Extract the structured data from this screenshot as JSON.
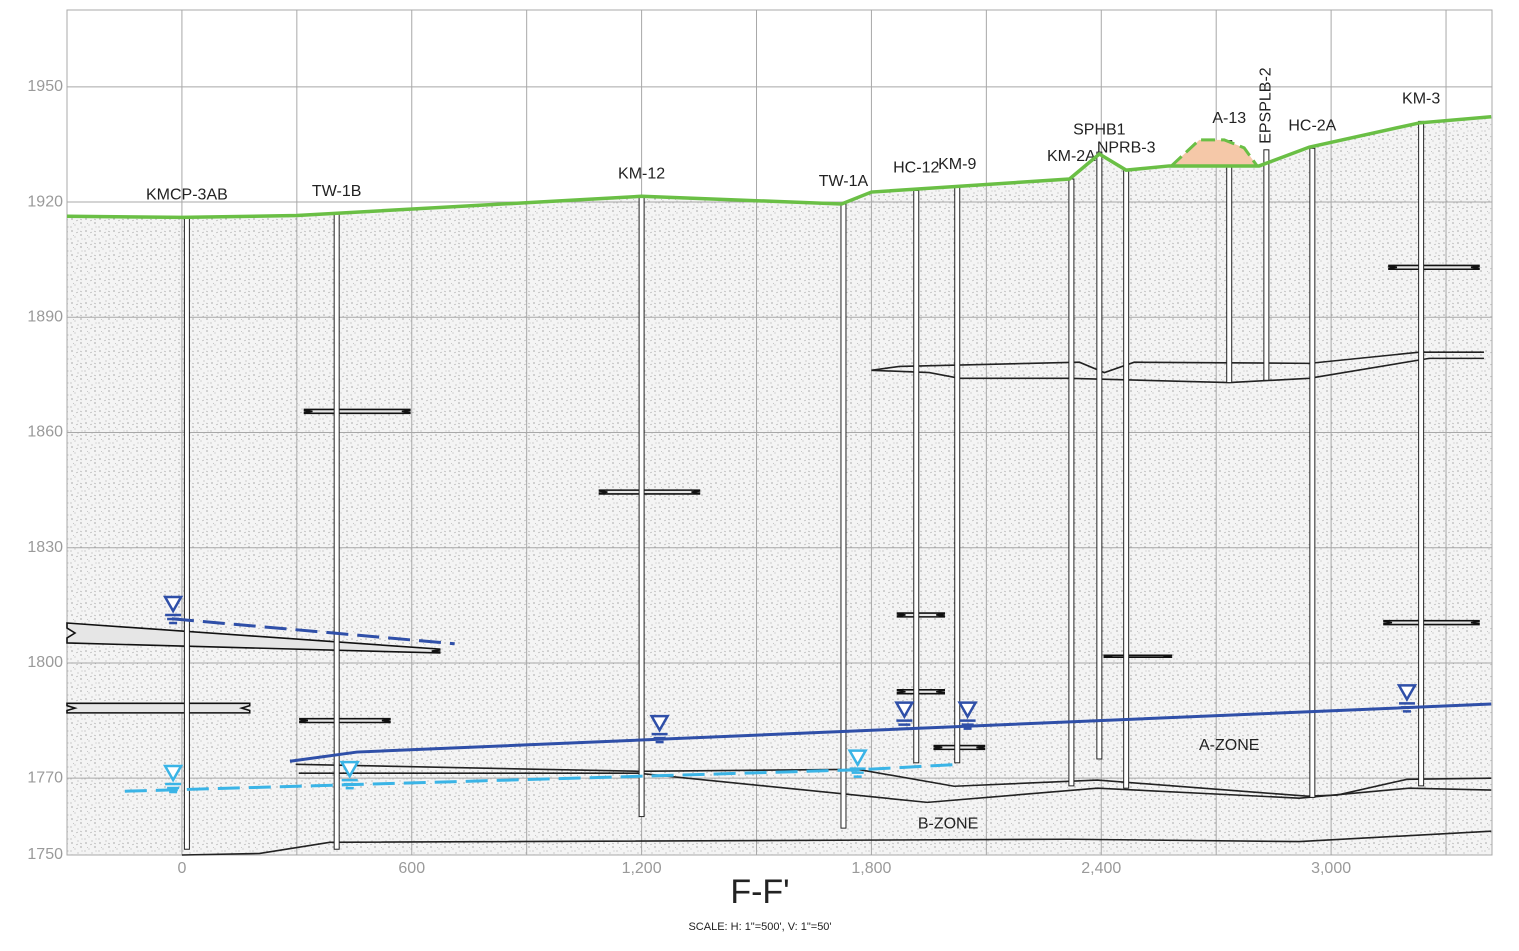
{
  "chart_data": {
    "type": "cross-section",
    "title": "F-F'",
    "subtitle": "SCALE: H: 1\"=500', V: 1\"=50'",
    "xlim": [
      -300,
      3420
    ],
    "ylim": [
      1750,
      1970
    ],
    "xticks": [
      0,
      600,
      {
        "value": 1200,
        "label": "1,200"
      },
      {
        "value": 1800,
        "label": "1,800"
      },
      {
        "value": 2400,
        "label": "2,400"
      },
      {
        "value": 3000,
        "label": "3,000"
      }
    ],
    "xgrid": [
      0,
      300,
      600,
      900,
      1200,
      1500,
      1800,
      2100,
      2400,
      2700,
      3000,
      3300
    ],
    "yticks": [
      1750,
      1770,
      1800,
      1830,
      1860,
      1890,
      1920,
      1950
    ],
    "grid": true,
    "ground": {
      "color": "#6abf45",
      "x": [
        -300,
        0,
        300,
        1200,
        1722,
        1800,
        2317,
        2395,
        2465,
        2577,
        2812,
        2943,
        3230,
        3418
      ],
      "y": [
        1916.3,
        1916,
        1916.5,
        1921.5,
        1919.5,
        1922.6,
        1926,
        1932.5,
        1928.3,
        1929.4,
        1929.4,
        1934.3,
        1940.6,
        1942.2
      ]
    },
    "mound": {
      "color": "#f5c8a8",
      "x": [
        2583,
        2656,
        2721,
        2773,
        2807
      ],
      "y": [
        1929.4,
        1936.2,
        1936.2,
        1934.1,
        1929.4
      ]
    },
    "boreholes": [
      {
        "name": "KMCP-3AB",
        "x": 13,
        "top": 1916,
        "bottom": 1751.5
      },
      {
        "name": "TW-1B",
        "x": 404,
        "top": 1916.9,
        "bottom": 1751.5
      },
      {
        "name": "KM-12",
        "x": 1200,
        "top": 1921.5,
        "bottom": 1760
      },
      {
        "name": "TW-1A",
        "x": 1727,
        "top": 1919.5,
        "bottom": 1757
      },
      {
        "name": "HC-12",
        "x": 1917,
        "top": 1923,
        "bottom": 1774
      },
      {
        "name": "KM-9",
        "x": 2024,
        "top": 1924,
        "bottom": 1774
      },
      {
        "name": "KM-2A",
        "x": 2322,
        "top": 1926,
        "bottom": 1768
      },
      {
        "name": "SPHB1",
        "x": 2395,
        "top": 1933,
        "bottom": 1775
      },
      {
        "name": "NPRB-3",
        "x": 2465,
        "top": 1928.3,
        "bottom": 1767.4
      },
      {
        "name": "A-13",
        "x": 2734,
        "top": 1936,
        "bottom": 1873
      },
      {
        "name": "EPSPLB-2",
        "x": 2831,
        "top": 1933.6,
        "bottom": 1873.6,
        "label_rotated": true
      },
      {
        "name": "HC-2A",
        "x": 2951,
        "top": 1934,
        "bottom": 1765
      },
      {
        "name": "KM-3",
        "x": 3235,
        "top": 1941,
        "bottom": 1768
      }
    ],
    "strata": [
      {
        "x": [
          297,
          1190,
          1764,
          2016,
          2390,
          2938,
          3016,
          3198,
          3418
        ],
        "y": [
          1773.6,
          1771.8,
          1772.3,
          1767.9,
          1769.5,
          1765.3,
          1765.6,
          1769.7,
          1770
        ]
      },
      {
        "x": [
          305,
          1190,
          1946,
          2390,
          2917,
          3204,
          3418
        ],
        "y": [
          1771.3,
          1771.3,
          1763.7,
          1767.4,
          1764.8,
          1767.4,
          1766.9
        ]
      },
      {
        "x": [
          0,
          203,
          386,
          2317,
          2917,
          3418
        ],
        "y": [
          1750,
          1750.4,
          1753.3,
          1754.1,
          1753.5,
          1756.2
        ]
      },
      {
        "x": [
          1800,
          1873,
          2343,
          2408,
          2486,
          2943,
          3230,
          3399
        ],
        "y": [
          1876.2,
          1877.2,
          1878.3,
          1875.6,
          1878.3,
          1878,
          1880.9,
          1880.9
        ]
      },
      {
        "x": [
          1800,
          1951,
          2030,
          2317,
          2734,
          2943,
          3256,
          3399
        ],
        "y": [
          1876.2,
          1875.6,
          1874.1,
          1874.1,
          1873,
          1874.1,
          1879.3,
          1879.3
        ]
      }
    ],
    "lenses": [
      {
        "x": [
          -300,
          673
        ],
        "top": [
          1810.4,
          1803.6
        ],
        "bottom": [
          1805.2,
          1802.6
        ]
      },
      {
        "x": [
          -300,
          177
        ],
        "top": [
          1789.5,
          1789.5
        ],
        "bottom": [
          1787,
          1787
        ]
      },
      {
        "x": [
          320,
          595
        ],
        "top": [
          1866,
          1866
        ],
        "bottom": [
          1865,
          1865
        ]
      },
      {
        "x": [
          308,
          543
        ],
        "top": [
          1785.5,
          1785.5
        ],
        "bottom": [
          1784.5,
          1784.5
        ]
      },
      {
        "x": [
          1090,
          1351
        ],
        "top": [
          1845,
          1845
        ],
        "bottom": [
          1844,
          1844
        ]
      },
      {
        "x": [
          1868,
          1990
        ],
        "top": [
          1813,
          1813
        ],
        "bottom": [
          1812,
          1812
        ]
      },
      {
        "x": [
          1868,
          1990
        ],
        "top": [
          1793,
          1793
        ],
        "bottom": [
          1792,
          1792
        ]
      },
      {
        "x": [
          1964,
          2095
        ],
        "top": [
          1778.5,
          1778.5
        ],
        "bottom": [
          1777.5,
          1777.5
        ]
      },
      {
        "x": [
          2408,
          2583
        ],
        "top": [
          1802,
          1802
        ],
        "bottom": [
          1801.5,
          1801.5
        ]
      },
      {
        "x": [
          3151,
          3386
        ],
        "top": [
          1903.5,
          1903.5
        ],
        "bottom": [
          1902.5,
          1902.5
        ]
      },
      {
        "x": [
          3138,
          3386
        ],
        "top": [
          1811,
          1811
        ],
        "bottom": [
          1810,
          1810
        ]
      }
    ],
    "water_lines": [
      {
        "color": "#2f4fa8",
        "dashed": false,
        "x": [
          282,
          457,
          3418
        ],
        "y": [
          1774.4,
          1776.8,
          1789.3
        ]
      },
      {
        "color": "#2f4fa8",
        "dashed": true,
        "x": [
          -26,
          712
        ],
        "y": [
          1811.5,
          1805
        ]
      },
      {
        "color": "#3ab4e6",
        "dashed": true,
        "x": [
          -149,
          1195,
          1769,
          2030
        ],
        "y": [
          1766.6,
          1770.5,
          1772.2,
          1773.6
        ]
      }
    ],
    "water_markers": [
      {
        "color": "#2f4fa8",
        "x": [
          -23,
          1247,
          1886,
          2051,
          3198
        ],
        "y": [
          1813,
          1782,
          1785.5,
          1785.5,
          1790
        ]
      },
      {
        "color": "#3ab4e6",
        "x": [
          -23,
          438,
          1764
        ],
        "y": [
          1769,
          1770,
          1773
        ]
      }
    ],
    "annotations": [
      {
        "text": "A-ZONE",
        "x": 2734,
        "y": 1778.5
      },
      {
        "text": "B-ZONE",
        "x": 2000,
        "y": 1758
      }
    ]
  }
}
